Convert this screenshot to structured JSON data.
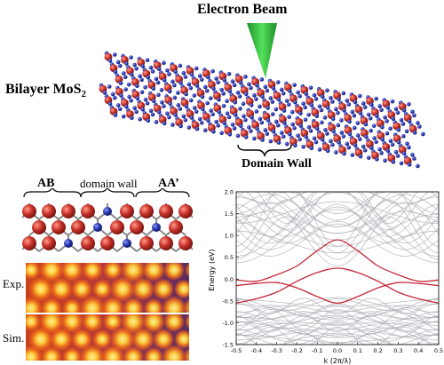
{
  "figure": {
    "electron_beam_label": "Electron Beam",
    "bilayer_label_main": "Bilayer MoS",
    "bilayer_label_sub": "2",
    "domain_wall_label": "Domain Wall",
    "panel_ab_label": "AB",
    "panel_domain_wall_label": "domain wall",
    "panel_aa_label": "AA’",
    "exp_label": "Exp.",
    "sim_label": "Sim."
  },
  "colors": {
    "beam": "#2fbf3a",
    "mo_atom": "#c8322a",
    "s_atom": "#2a3ab0",
    "band_gray": "#a9a9b3",
    "band_red": "#c4283a",
    "stem_hot": "#ffe24a",
    "stem_mid": "#e8541e",
    "stem_dark": "#4a2560"
  },
  "chart_data": {
    "type": "line",
    "xlabel": "k (2π/λ)",
    "ylabel": "Energy (eV)",
    "xlim": [
      -0.5,
      0.5
    ],
    "ylim": [
      -1.5,
      2.0
    ],
    "xticks": [
      "-0.5",
      "-0.4",
      "-0.3",
      "-0.2",
      "-0.1",
      "0.0",
      "0.1",
      "0.2",
      "0.3",
      "0.4",
      "0.5"
    ],
    "yticks": [
      "-1.5",
      "-1.0",
      "-0.5",
      "0.0",
      "0.5",
      "1.0",
      "1.5",
      "2.0"
    ],
    "series": [
      {
        "color": "#c4283a",
        "x": [
          -0.5,
          -0.4,
          -0.3,
          -0.2,
          -0.1,
          0.0,
          0.1,
          0.2,
          0.3,
          0.4,
          0.5
        ],
        "y": [
          -0.02,
          -0.05,
          0.1,
          0.3,
          0.65,
          0.9,
          0.65,
          0.3,
          0.1,
          -0.05,
          -0.02
        ]
      },
      {
        "color": "#c4283a",
        "x": [
          -0.5,
          -0.4,
          -0.3,
          -0.2,
          -0.1,
          0.0,
          0.1,
          0.2,
          0.3,
          0.4,
          0.5
        ],
        "y": [
          -0.15,
          -0.1,
          -0.08,
          -0.2,
          -0.4,
          -0.55,
          -0.4,
          -0.2,
          -0.08,
          -0.1,
          -0.15
        ]
      },
      {
        "color": "#c4283a",
        "x": [
          -0.5,
          -0.4,
          -0.3,
          -0.2,
          -0.1,
          0.0,
          0.1,
          0.2,
          0.3,
          0.4,
          0.5
        ],
        "y": [
          -0.55,
          -0.45,
          -0.3,
          -0.05,
          0.15,
          0.25,
          0.15,
          -0.05,
          -0.3,
          -0.45,
          -0.55
        ]
      }
    ]
  }
}
